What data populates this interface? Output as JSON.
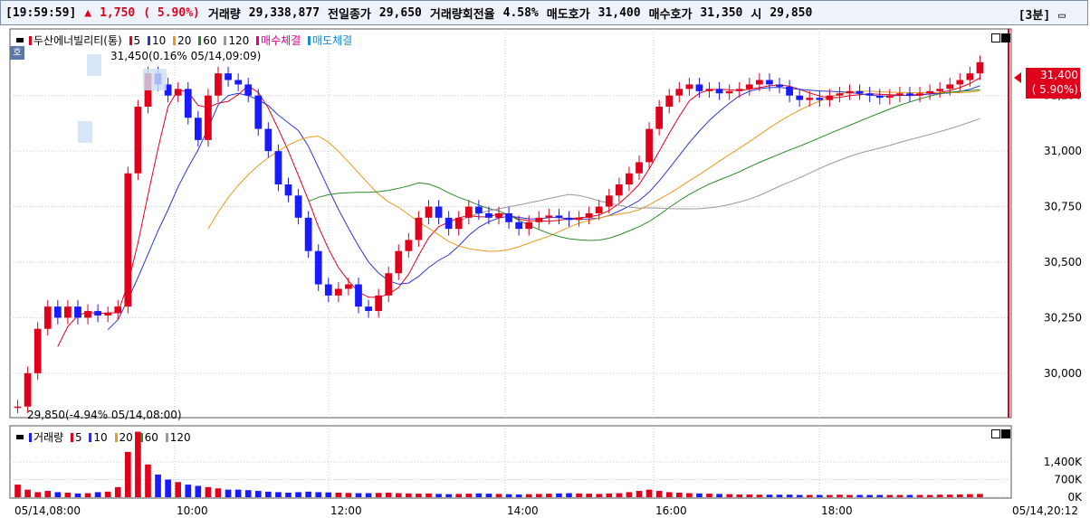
{
  "header": {
    "time": "[19:59:59]",
    "arrow": "▲",
    "change": "1,750",
    "change_pct": "( 5.90%)",
    "volume_label": "거래량",
    "volume": "29,338,877",
    "prev_close_label": "전일종가",
    "prev_close": "29,650",
    "turnover_label": "거래량회전율",
    "turnover": "4.58%",
    "ask_label": "매도호가",
    "ask": "31,400",
    "bid_label": "매수호가",
    "bid": "31,350",
    "open_label": "시",
    "open": "29,850",
    "interval": "[3분]"
  },
  "legend_main": {
    "title": "두산에너빌리티(통)",
    "ma5": "5",
    "ma10": "10",
    "ma20": "20",
    "ma60": "60",
    "ma120": "120",
    "buy_fill": "매수체결",
    "sell_fill": "매도체결",
    "ho_icon": "호"
  },
  "legend_volume": {
    "title": "거래량",
    "ma5": "5",
    "ma10": "10",
    "ma20": "20",
    "ma60": "60",
    "ma120": "120"
  },
  "annotations": {
    "high": "31,450(0.16% 05/14,09:09)",
    "low": "29,850(-4.94% 05/14,08:00)"
  },
  "price_box": {
    "price": "31,400",
    "pct": "( 5.90%)"
  },
  "colors": {
    "up": "#e0001c",
    "down": "#1a1aff",
    "ma5": "#e0001c",
    "ma10": "#2a35d8",
    "ma20": "#e89a1c",
    "ma60": "#2b8a2b",
    "ma120": "#9a9a9a"
  },
  "chart_data": [
    {
      "type": "candlestick",
      "y_ticks": [
        "31,250",
        "31,000",
        "30,750",
        "30,500",
        "30,250",
        "30,000"
      ],
      "x_ticks": [
        "05/14,08:00",
        "10:00",
        "12:00",
        "14:00",
        "16:00",
        "18:00",
        "05/14,20:12"
      ],
      "ylim": [
        29800,
        31550
      ],
      "close": [
        29850,
        30000,
        30200,
        30300,
        30250,
        30300,
        30250,
        30280,
        30260,
        30270,
        30300,
        30900,
        31200,
        31350,
        31300,
        31250,
        31280,
        31150,
        31050,
        31250,
        31350,
        31320,
        31300,
        31250,
        31100,
        31000,
        30850,
        30800,
        30700,
        30550,
        30400,
        30350,
        30380,
        30400,
        30300,
        30280,
        30350,
        30450,
        30550,
        30600,
        30700,
        30750,
        30700,
        30650,
        30700,
        30750,
        30720,
        30700,
        30720,
        30680,
        30650,
        30680,
        30700,
        30710,
        30700,
        30690,
        30700,
        30720,
        30750,
        30800,
        30850,
        30900,
        30950,
        31100,
        31200,
        31250,
        31280,
        31300,
        31270,
        31280,
        31260,
        31270,
        31280,
        31300,
        31320,
        31300,
        31290,
        31250,
        31230,
        31240,
        31230,
        31250,
        31260,
        31270,
        31260,
        31250,
        31240,
        31250,
        31260,
        31250,
        31260,
        31270,
        31280,
        31300,
        31320,
        31350,
        31400
      ],
      "open": 29850,
      "high": 31450,
      "low": 29850,
      "last": 31400
    },
    {
      "type": "bar",
      "title": "거래량",
      "y_ticks": [
        "1,400K",
        "700K",
        "0K"
      ],
      "ylim": [
        0,
        2800000
      ],
      "values": [
        500,
        300,
        200,
        250,
        200,
        180,
        150,
        160,
        200,
        220,
        400,
        1800,
        2600,
        1300,
        900,
        700,
        600,
        500,
        450,
        400,
        350,
        300,
        300,
        280,
        250,
        220,
        200,
        180,
        200,
        220,
        200,
        190,
        180,
        170,
        160,
        160,
        170,
        180,
        160,
        150,
        140,
        150,
        130,
        120,
        130,
        140,
        150,
        140,
        130,
        120,
        110,
        120,
        130,
        140,
        150,
        160,
        150,
        140,
        130,
        150,
        160,
        200,
        250,
        300,
        250,
        200,
        180,
        160,
        150,
        140,
        130,
        120,
        110,
        110,
        100,
        100,
        100,
        100,
        90,
        90,
        90,
        90,
        100,
        90,
        90,
        90,
        90,
        90,
        90,
        90,
        90,
        90,
        100,
        100,
        110,
        120,
        130
      ]
    }
  ]
}
